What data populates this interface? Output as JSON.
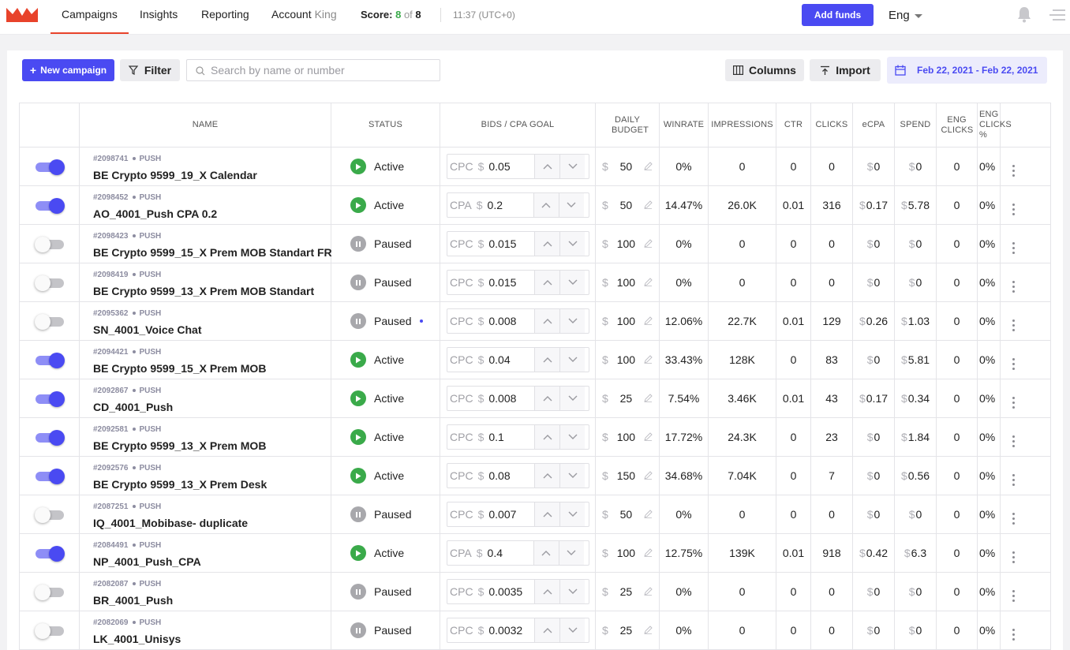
{
  "nav": {
    "campaigns": "Campaigns",
    "insights": "Insights",
    "reporting": "Reporting",
    "account": "Account",
    "account_name": "King"
  },
  "score": {
    "label": "Score:",
    "value": "8",
    "of": "of",
    "total": "8"
  },
  "clock": "11:37 (UTC+0)",
  "add_funds": "Add funds",
  "language": "Eng",
  "toolbar": {
    "new_campaign": "New campaign",
    "filter": "Filter",
    "search_placeholder": "Search by name or number",
    "columns": "Columns",
    "import": "Import",
    "date_range": "Feb 22, 2021 - Feb 22, 2021"
  },
  "colors": {
    "accent": "#4a4af2",
    "active": "#3aaa4a",
    "paused": "#a8a8ac",
    "brand": "#e8432b"
  },
  "table": {
    "headers": [
      "",
      "NAME",
      "STATUS",
      "BIDS / CPA GOAL",
      "DAILY BUDGET",
      "WINRATE",
      "IMPRESSIONS",
      "CTR",
      "CLICKS",
      "eCPA",
      "SPEND",
      "ENG CLICKS",
      "ENG CLICKS %",
      ""
    ],
    "rows": [
      {
        "on": true,
        "id": "#2098741",
        "type": "PUSH",
        "name": "BE Crypto 9599_19_X Calendar",
        "status": "Active",
        "bid_type": "CPC",
        "bid": "0.05",
        "budget": "50",
        "winrate": "0%",
        "impressions": "0",
        "ctr": "0",
        "clicks": "0",
        "ecpa": "0",
        "spend": "0",
        "eng_clicks": "0",
        "eng_pct": "0%"
      },
      {
        "on": true,
        "id": "#2098452",
        "type": "PUSH",
        "name": "AO_4001_Push CPA 0.2",
        "status": "Active",
        "bid_type": "CPA",
        "bid": "0.2",
        "budget": "50",
        "winrate": "14.47%",
        "impressions": "26.0K",
        "ctr": "0.01",
        "clicks": "316",
        "ecpa": "0.17",
        "spend": "5.78",
        "eng_clicks": "0",
        "eng_pct": "0%"
      },
      {
        "on": false,
        "id": "#2098423",
        "type": "PUSH",
        "name": "BE Crypto 9599_15_X Prem MOB Standart FR",
        "status": "Paused",
        "bid_type": "CPC",
        "bid": "0.015",
        "budget": "100",
        "winrate": "0%",
        "impressions": "0",
        "ctr": "0",
        "clicks": "0",
        "ecpa": "0",
        "spend": "0",
        "eng_clicks": "0",
        "eng_pct": "0%"
      },
      {
        "on": false,
        "id": "#2098419",
        "type": "PUSH",
        "name": "BE Crypto 9599_13_X Prem MOB Standart",
        "status": "Paused",
        "bid_type": "CPC",
        "bid": "0.015",
        "budget": "100",
        "winrate": "0%",
        "impressions": "0",
        "ctr": "0",
        "clicks": "0",
        "ecpa": "0",
        "spend": "0",
        "eng_clicks": "0",
        "eng_pct": "0%"
      },
      {
        "on": false,
        "id": "#2095362",
        "type": "PUSH",
        "name": "SN_4001_Voice Chat",
        "status": "Paused",
        "dot": true,
        "bid_type": "CPC",
        "bid": "0.008",
        "budget": "100",
        "winrate": "12.06%",
        "impressions": "22.7K",
        "ctr": "0.01",
        "clicks": "129",
        "ecpa": "0.26",
        "spend": "1.03",
        "eng_clicks": "0",
        "eng_pct": "0%"
      },
      {
        "on": true,
        "id": "#2094421",
        "type": "PUSH",
        "name": "BE Crypto 9599_15_X Prem MOB",
        "status": "Active",
        "bid_type": "CPC",
        "bid": "0.04",
        "budget": "100",
        "winrate": "33.43%",
        "impressions": "128K",
        "ctr": "0",
        "clicks": "83",
        "ecpa": "0",
        "spend": "5.81",
        "eng_clicks": "0",
        "eng_pct": "0%"
      },
      {
        "on": true,
        "id": "#2092867",
        "type": "PUSH",
        "name": "CD_4001_Push",
        "status": "Active",
        "bid_type": "CPC",
        "bid": "0.008",
        "budget": "25",
        "winrate": "7.54%",
        "impressions": "3.46K",
        "ctr": "0.01",
        "clicks": "43",
        "ecpa": "0.17",
        "spend": "0.34",
        "eng_clicks": "0",
        "eng_pct": "0%"
      },
      {
        "on": true,
        "id": "#2092581",
        "type": "PUSH",
        "name": "BE Crypto 9599_13_X Prem MOB",
        "status": "Active",
        "bid_type": "CPC",
        "bid": "0.1",
        "budget": "100",
        "winrate": "17.72%",
        "impressions": "24.3K",
        "ctr": "0",
        "clicks": "23",
        "ecpa": "0",
        "spend": "1.84",
        "eng_clicks": "0",
        "eng_pct": "0%"
      },
      {
        "on": true,
        "id": "#2092576",
        "type": "PUSH",
        "name": "BE Crypto 9599_13_X Prem Desk",
        "status": "Active",
        "bid_type": "CPC",
        "bid": "0.08",
        "budget": "150",
        "winrate": "34.68%",
        "impressions": "7.04K",
        "ctr": "0",
        "clicks": "7",
        "ecpa": "0",
        "spend": "0.56",
        "eng_clicks": "0",
        "eng_pct": "0%"
      },
      {
        "on": false,
        "id": "#2087251",
        "type": "PUSH",
        "name": "IQ_4001_Mobibase- duplicate",
        "status": "Paused",
        "bid_type": "CPC",
        "bid": "0.007",
        "budget": "50",
        "winrate": "0%",
        "impressions": "0",
        "ctr": "0",
        "clicks": "0",
        "ecpa": "0",
        "spend": "0",
        "eng_clicks": "0",
        "eng_pct": "0%"
      },
      {
        "on": true,
        "id": "#2084491",
        "type": "PUSH",
        "name": "NP_4001_Push_CPA",
        "status": "Active",
        "bid_type": "CPA",
        "bid": "0.4",
        "budget": "100",
        "winrate": "12.75%",
        "impressions": "139K",
        "ctr": "0.01",
        "clicks": "918",
        "ecpa": "0.42",
        "spend": "6.3",
        "eng_clicks": "0",
        "eng_pct": "0%"
      },
      {
        "on": false,
        "id": "#2082087",
        "type": "PUSH",
        "name": "BR_4001_Push",
        "status": "Paused",
        "bid_type": "CPC",
        "bid": "0.0035",
        "budget": "25",
        "winrate": "0%",
        "impressions": "0",
        "ctr": "0",
        "clicks": "0",
        "ecpa": "0",
        "spend": "0",
        "eng_clicks": "0",
        "eng_pct": "0%"
      },
      {
        "on": false,
        "id": "#2082069",
        "type": "PUSH",
        "name": "LK_4001_Unisys",
        "status": "Paused",
        "bid_type": "CPC",
        "bid": "0.0032",
        "budget": "25",
        "winrate": "0%",
        "impressions": "0",
        "ctr": "0",
        "clicks": "0",
        "ecpa": "0",
        "spend": "0",
        "eng_clicks": "0",
        "eng_pct": "0%"
      }
    ]
  }
}
